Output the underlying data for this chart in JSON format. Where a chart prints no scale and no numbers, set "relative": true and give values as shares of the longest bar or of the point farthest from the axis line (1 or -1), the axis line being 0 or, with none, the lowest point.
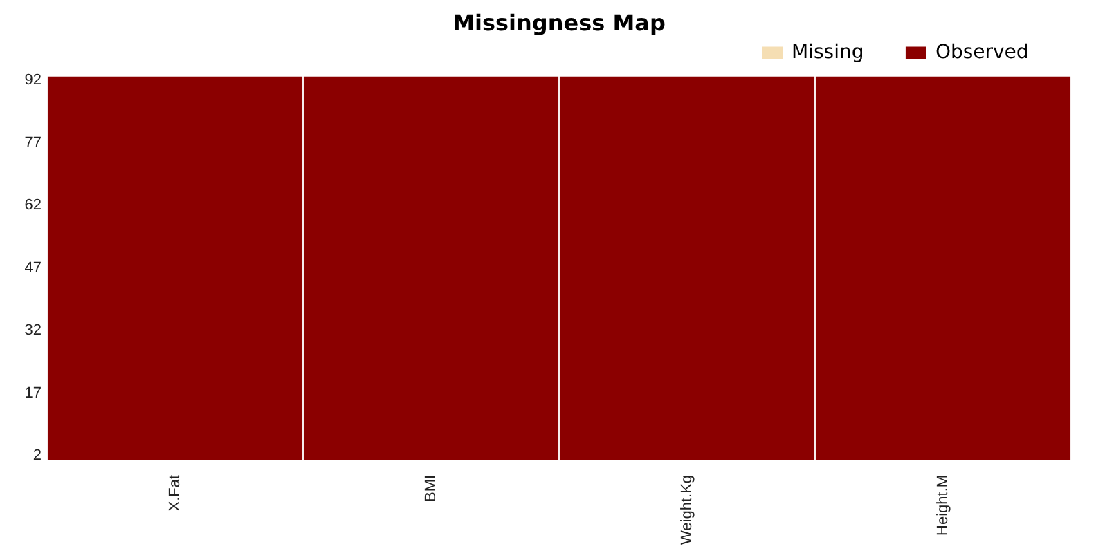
{
  "chart_data": {
    "type": "bar",
    "title": "Missingness Map",
    "relative": true,
    "stacked": true,
    "categories": [
      "X.Fat",
      "BMI",
      "Weight.Kg",
      "Height.M"
    ],
    "series": [
      {
        "name": "Missing",
        "color": "#f5deb3",
        "values": [
          0,
          0,
          0,
          0
        ]
      },
      {
        "name": "Observed",
        "color": "#8b0000",
        "values": [
          1,
          1,
          1,
          1
        ]
      }
    ],
    "legend": "top right",
    "annotations": [
      "92",
      "77",
      "62",
      "47",
      "32",
      "17",
      "2"
    ]
  }
}
